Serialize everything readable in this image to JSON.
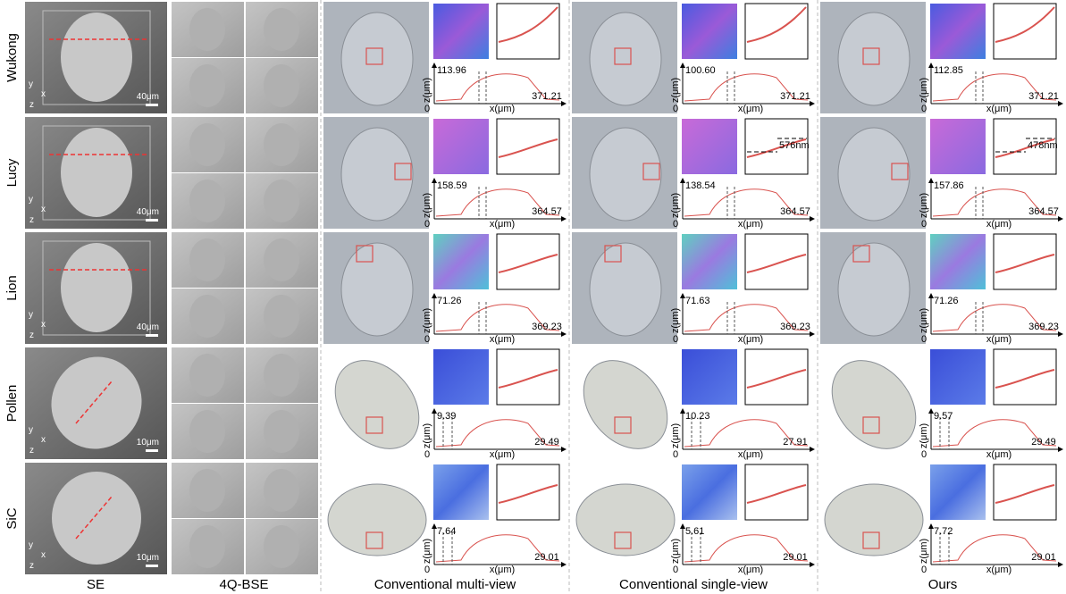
{
  "rows": [
    {
      "label": "Wukong",
      "scale": "40μm",
      "methods": [
        {
          "peak": "113.96",
          "end": "371.21"
        },
        {
          "peak": "100.60",
          "end": "371.21"
        },
        {
          "peak": "112.85",
          "end": "371.21"
        }
      ]
    },
    {
      "label": "Lucy",
      "scale": "40μm",
      "methods": [
        {
          "peak": "158.59",
          "end": "364.57"
        },
        {
          "peak": "138.54",
          "end": "364.57",
          "note": "576nm"
        },
        {
          "peak": "157.86",
          "end": "364.57",
          "note": "478nm"
        }
      ]
    },
    {
      "label": "Lion",
      "scale": "40μm",
      "methods": [
        {
          "peak": "71.26",
          "end": "369.23"
        },
        {
          "peak": "71.63",
          "end": "369.23"
        },
        {
          "peak": "71.26",
          "end": "369.23"
        }
      ]
    },
    {
      "label": "Pollen",
      "scale": "10μm",
      "methods": [
        {
          "peak": "9.39",
          "end": "29.49"
        },
        {
          "peak": "10.23",
          "end": "27.91"
        },
        {
          "peak": "9.57",
          "end": "29.49"
        }
      ]
    },
    {
      "label": "SiC",
      "scale": "10μm",
      "methods": [
        {
          "peak": "7.64",
          "end": "29.01"
        },
        {
          "peak": "5.61",
          "end": "29.01"
        },
        {
          "peak": "7.72",
          "end": "29.01"
        }
      ]
    }
  ],
  "columns": [
    "SE",
    "4Q-BSE",
    "Conventional multi-view",
    "Conventional single-view",
    "Ours"
  ],
  "axis": {
    "z": "z(μm)",
    "x": "x(μm)",
    "origin": "0"
  },
  "frame_axes": {
    "x": "x",
    "y": "y",
    "z": "z"
  }
}
